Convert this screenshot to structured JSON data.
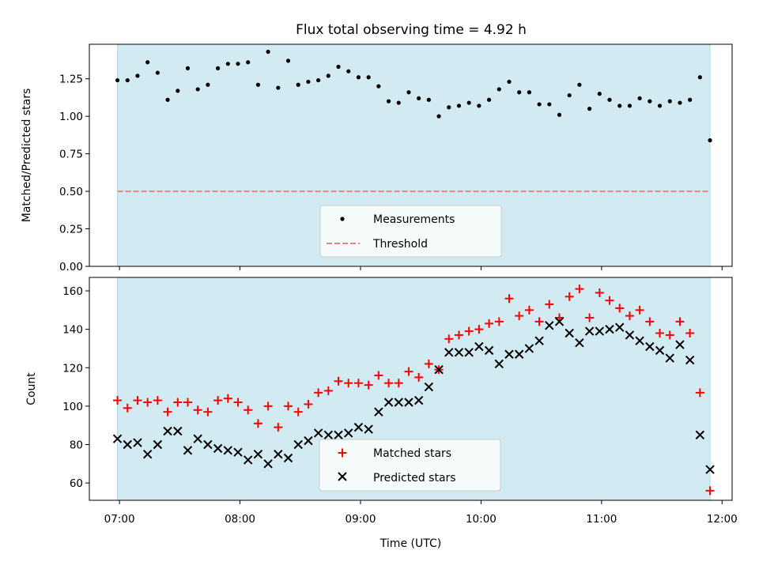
{
  "title": "Flux total observing time = 4.92 h",
  "colors": {
    "observing_span": "#add8e6",
    "measurements": "#000000",
    "threshold": "#f08080",
    "matched": "#ff0000",
    "predicted": "#000000"
  },
  "chart_data": [
    {
      "type": "scatter",
      "title": "Flux total observing time = 4.92 h",
      "xlabel": "",
      "ylabel": "Matched/Predicted stars",
      "xlim": [
        "06:45",
        "12:05"
      ],
      "ylim": [
        0,
        1.48
      ],
      "yticks": [
        0,
        0.25,
        0.5,
        0.75,
        1.0,
        1.25
      ],
      "ytick_labels": [
        "0.00",
        "0.25",
        "0.50",
        "0.75",
        "1.00",
        "1.25"
      ],
      "shaded_span": [
        "06:59",
        "11:54"
      ],
      "legend_position": "lower-center",
      "series": [
        {
          "name": "Measurements",
          "marker": "dot",
          "x": [
            "06:59",
            "07:04",
            "07:09",
            "07:14",
            "07:19",
            "07:24",
            "07:29",
            "07:34",
            "07:39",
            "07:44",
            "07:49",
            "07:54",
            "07:59",
            "08:04",
            "08:09",
            "08:14",
            "08:19",
            "08:24",
            "08:29",
            "08:34",
            "08:39",
            "08:44",
            "08:49",
            "08:54",
            "08:59",
            "09:04",
            "09:09",
            "09:14",
            "09:19",
            "09:24",
            "09:29",
            "09:34",
            "09:39",
            "09:44",
            "09:49",
            "09:54",
            "09:59",
            "10:04",
            "10:09",
            "10:14",
            "10:19",
            "10:24",
            "10:29",
            "10:34",
            "10:39",
            "10:44",
            "10:49",
            "10:54",
            "10:59",
            "11:04",
            "11:09",
            "11:14",
            "11:19",
            "11:24",
            "11:29",
            "11:34",
            "11:39",
            "11:44",
            "11:49",
            "11:54"
          ],
          "y": [
            1.24,
            1.24,
            1.27,
            1.36,
            1.29,
            1.11,
            1.17,
            1.32,
            1.18,
            1.21,
            1.32,
            1.35,
            1.35,
            1.36,
            1.21,
            1.43,
            1.19,
            1.37,
            1.21,
            1.23,
            1.24,
            1.27,
            1.33,
            1.3,
            1.26,
            1.26,
            1.2,
            1.1,
            1.09,
            1.16,
            1.12,
            1.11,
            1.0,
            1.06,
            1.07,
            1.09,
            1.07,
            1.11,
            1.18,
            1.23,
            1.16,
            1.16,
            1.08,
            1.08,
            1.01,
            1.14,
            1.21,
            1.05,
            1.15,
            1.11,
            1.07,
            1.07,
            1.12,
            1.1,
            1.07,
            1.1,
            1.09,
            1.11,
            1.26,
            0.84
          ]
        },
        {
          "name": "Threshold",
          "marker": "dashed-line",
          "x": [
            "06:59",
            "11:54"
          ],
          "y": [
            0.5,
            0.5
          ]
        }
      ]
    },
    {
      "type": "scatter",
      "xlabel": "Time (UTC)",
      "ylabel": "Count",
      "xlim": [
        "06:45",
        "12:05"
      ],
      "ylim": [
        51,
        167
      ],
      "xticks": [
        "07:00",
        "08:00",
        "09:00",
        "10:00",
        "11:00",
        "12:00"
      ],
      "yticks": [
        60,
        80,
        100,
        120,
        140,
        160
      ],
      "ytick_labels": [
        "60",
        "80",
        "100",
        "120",
        "140",
        "160"
      ],
      "shaded_span": [
        "06:59",
        "11:54"
      ],
      "legend_position": "lower-center",
      "x": [
        "06:59",
        "07:04",
        "07:09",
        "07:14",
        "07:19",
        "07:24",
        "07:29",
        "07:34",
        "07:39",
        "07:44",
        "07:49",
        "07:54",
        "07:59",
        "08:04",
        "08:09",
        "08:14",
        "08:19",
        "08:24",
        "08:29",
        "08:34",
        "08:39",
        "08:44",
        "08:49",
        "08:54",
        "08:59",
        "09:04",
        "09:09",
        "09:14",
        "09:19",
        "09:24",
        "09:29",
        "09:34",
        "09:39",
        "09:44",
        "09:49",
        "09:54",
        "09:59",
        "10:04",
        "10:09",
        "10:14",
        "10:19",
        "10:24",
        "10:29",
        "10:34",
        "10:39",
        "10:44",
        "10:49",
        "10:54",
        "10:59",
        "11:04",
        "11:09",
        "11:14",
        "11:19",
        "11:24",
        "11:29",
        "11:34",
        "11:39",
        "11:44",
        "11:49",
        "11:54"
      ],
      "series": [
        {
          "name": "Matched stars",
          "marker": "plus",
          "values": [
            103,
            99,
            103,
            102,
            103,
            97,
            102,
            102,
            98,
            97,
            103,
            104,
            102,
            98,
            91,
            100,
            89,
            100,
            97,
            101,
            107,
            108,
            113,
            112,
            112,
            111,
            116,
            112,
            112,
            118,
            115,
            122,
            119,
            135,
            137,
            139,
            140,
            143,
            144,
            156,
            147,
            150,
            144,
            153,
            146,
            157,
            161,
            146,
            159,
            155,
            151,
            147,
            150,
            144,
            138,
            137,
            144,
            138,
            107,
            56
          ]
        },
        {
          "name": "Predicted stars",
          "marker": "x",
          "values": [
            83,
            80,
            81,
            75,
            80,
            87,
            87,
            77,
            83,
            80,
            78,
            77,
            76,
            72,
            75,
            70,
            75,
            73,
            80,
            82,
            86,
            85,
            85,
            86,
            89,
            88,
            97,
            102,
            102,
            102,
            103,
            110,
            119,
            128,
            128,
            128,
            131,
            129,
            122,
            127,
            127,
            130,
            134,
            142,
            144,
            138,
            133,
            139,
            139,
            140,
            141,
            137,
            134,
            131,
            129,
            125,
            132,
            124,
            85,
            67
          ]
        }
      ]
    }
  ]
}
